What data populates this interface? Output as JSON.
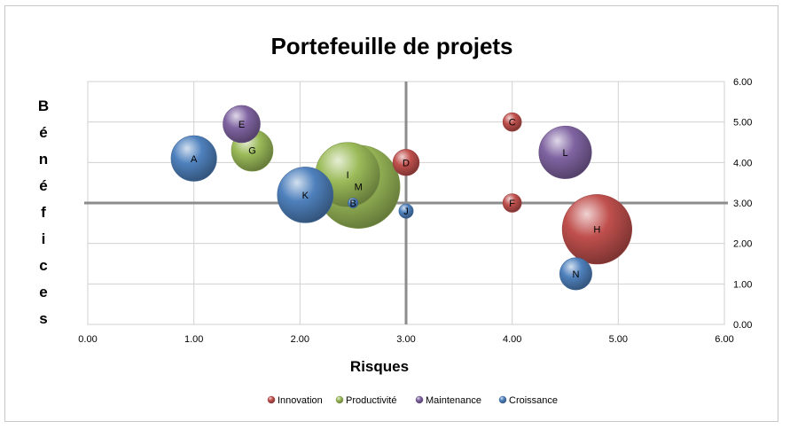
{
  "chart_data": {
    "type": "bubble",
    "title": "Portefeuille de projets",
    "xlabel": "Risques",
    "ylabel": "Bénéfices",
    "xlim": [
      0,
      6
    ],
    "ylim": [
      0,
      6
    ],
    "x_ticks": [
      "0.00",
      "1.00",
      "2.00",
      "3.00",
      "4.00",
      "5.00",
      "6.00"
    ],
    "y_ticks": [
      "0.00",
      "1.00",
      "2.00",
      "3.00",
      "4.00",
      "5.00",
      "6.00"
    ],
    "grid": true,
    "quadrant_lines": {
      "x": 3,
      "y": 3
    },
    "legend_position": "bottom",
    "series": [
      {
        "name": "Innovation",
        "color": "#c0504d",
        "points": [
          {
            "label": "C",
            "x": 4.0,
            "y": 5.0,
            "size": 1
          },
          {
            "label": "D",
            "x": 3.0,
            "y": 4.0,
            "size": 2
          },
          {
            "label": "F",
            "x": 4.0,
            "y": 3.0,
            "size": 1
          },
          {
            "label": "H",
            "x": 4.8,
            "y": 2.35,
            "size": 14
          }
        ]
      },
      {
        "name": "Productivité",
        "color": "#9bbb59",
        "points": [
          {
            "label": "G",
            "x": 1.55,
            "y": 4.3,
            "size": 5
          },
          {
            "label": "I",
            "x": 2.45,
            "y": 3.7,
            "size": 12
          },
          {
            "label": "M",
            "x": 2.55,
            "y": 3.4,
            "size": 20
          }
        ]
      },
      {
        "name": "Maintenance",
        "color": "#8064a2",
        "points": [
          {
            "label": "E",
            "x": 1.45,
            "y": 4.95,
            "size": 4
          },
          {
            "label": "L",
            "x": 4.5,
            "y": 4.25,
            "size": 8
          }
        ]
      },
      {
        "name": "Croissance",
        "color": "#4f81bd",
        "points": [
          {
            "label": "A",
            "x": 1.0,
            "y": 4.1,
            "size": 6
          },
          {
            "label": "B",
            "x": 2.5,
            "y": 3.0,
            "size": 0.3
          },
          {
            "label": "J",
            "x": 3.0,
            "y": 2.8,
            "size": 0.6
          },
          {
            "label": "K",
            "x": 2.05,
            "y": 3.2,
            "size": 9
          },
          {
            "label": "N",
            "x": 4.6,
            "y": 1.25,
            "size": 3
          }
        ]
      }
    ]
  }
}
